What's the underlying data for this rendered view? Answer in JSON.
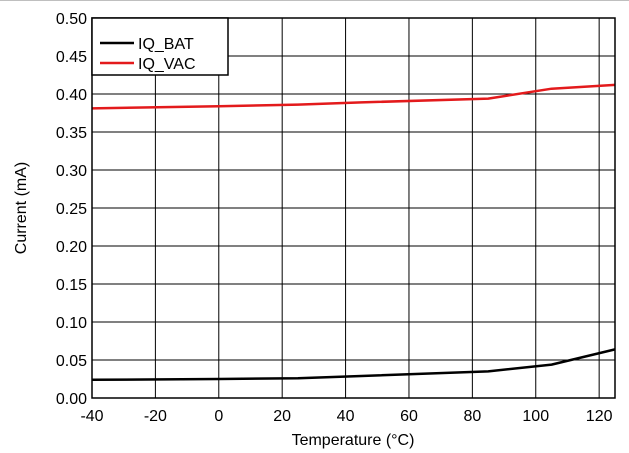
{
  "chart_data": {
    "type": "line",
    "xlabel": "Temperature (°C)",
    "ylabel": "Current (mA)",
    "xlim": [
      -40,
      125
    ],
    "ylim": [
      0,
      0.5
    ],
    "x_ticks": [
      -40,
      -20,
      0,
      20,
      40,
      60,
      80,
      100,
      120
    ],
    "y_ticks": [
      "0.00",
      "0.05",
      "0.10",
      "0.15",
      "0.20",
      "0.25",
      "0.30",
      "0.35",
      "0.40",
      "0.45",
      "0.50"
    ],
    "grid": true,
    "legend_position": "top-left",
    "series": [
      {
        "name": "IQ_BAT",
        "color": "#000000",
        "x": [
          -40,
          0,
          25,
          45,
          85,
          105,
          125
        ],
        "y": [
          0.024,
          0.025,
          0.026,
          0.029,
          0.035,
          0.044,
          0.064
        ]
      },
      {
        "name": "IQ_VAC",
        "color": "#e31a1c",
        "x": [
          -40,
          0,
          25,
          45,
          85,
          105,
          125
        ],
        "y": [
          0.381,
          0.384,
          0.386,
          0.389,
          0.394,
          0.407,
          0.412
        ]
      }
    ]
  }
}
